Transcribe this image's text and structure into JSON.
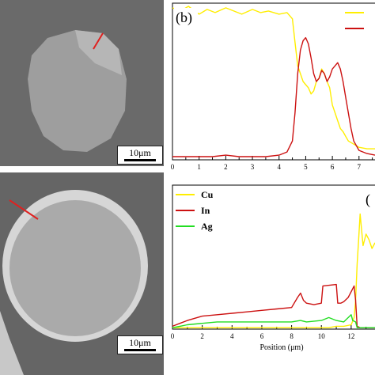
{
  "panels": {
    "a": {
      "scale_label": "10μm"
    },
    "c": {
      "scale_label": "10μm"
    }
  },
  "chart_data": [
    {
      "type": "line",
      "panel_label": "(b)",
      "xlabel": "",
      "ylabel": "",
      "xlim": [
        0,
        7.6
      ],
      "ylim": [
        0,
        1
      ],
      "xticks": [
        0,
        1,
        2,
        3,
        4,
        5,
        6,
        7
      ],
      "series": [
        {
          "name": "",
          "color": "#ffee00",
          "x": [
            0.0,
            0.3,
            0.6,
            1.0,
            1.3,
            1.6,
            2.0,
            2.3,
            2.6,
            3.0,
            3.3,
            3.6,
            4.0,
            4.3,
            4.5,
            4.6,
            4.7,
            4.8,
            4.9,
            5.0,
            5.1,
            5.2,
            5.3,
            5.4,
            5.5,
            5.6,
            5.7,
            5.8,
            5.9,
            6.0,
            6.1,
            6.2,
            6.3,
            6.4,
            6.5,
            6.6,
            6.8,
            7.0,
            7.3,
            7.6
          ],
          "y": [
            0.97,
            0.95,
            0.98,
            0.93,
            0.96,
            0.94,
            0.97,
            0.95,
            0.93,
            0.96,
            0.94,
            0.95,
            0.93,
            0.94,
            0.9,
            0.75,
            0.6,
            0.55,
            0.5,
            0.48,
            0.46,
            0.42,
            0.44,
            0.5,
            0.52,
            0.58,
            0.55,
            0.5,
            0.46,
            0.35,
            0.3,
            0.25,
            0.2,
            0.18,
            0.15,
            0.12,
            0.1,
            0.08,
            0.07,
            0.07
          ]
        },
        {
          "name": "",
          "color": "#cc1111",
          "x": [
            0.0,
            0.5,
            1.0,
            1.5,
            2.0,
            2.5,
            3.0,
            3.5,
            4.0,
            4.3,
            4.5,
            4.6,
            4.7,
            4.8,
            4.9,
            5.0,
            5.1,
            5.2,
            5.3,
            5.4,
            5.5,
            5.6,
            5.7,
            5.8,
            5.9,
            6.0,
            6.1,
            6.2,
            6.3,
            6.4,
            6.5,
            6.6,
            6.7,
            6.8,
            7.0,
            7.3,
            7.6
          ],
          "y": [
            0.02,
            0.02,
            0.02,
            0.02,
            0.03,
            0.02,
            0.02,
            0.02,
            0.03,
            0.05,
            0.12,
            0.3,
            0.55,
            0.7,
            0.76,
            0.78,
            0.74,
            0.65,
            0.55,
            0.5,
            0.52,
            0.57,
            0.55,
            0.5,
            0.53,
            0.58,
            0.6,
            0.62,
            0.58,
            0.5,
            0.4,
            0.3,
            0.2,
            0.12,
            0.06,
            0.04,
            0.03
          ]
        }
      ]
    },
    {
      "type": "line",
      "panel_label": "(",
      "xlabel": "Position (μm)",
      "ylabel": "",
      "xlim": [
        0,
        13.6
      ],
      "ylim": [
        0,
        1
      ],
      "xticks": [
        0,
        2,
        4,
        6,
        8,
        10,
        12
      ],
      "legend": [
        "Cu",
        "In",
        "Ag"
      ],
      "series": [
        {
          "name": "Cu",
          "color": "#ffee00",
          "x": [
            0,
            1,
            2,
            3,
            4,
            5,
            6,
            7,
            8,
            8.5,
            9,
            10,
            10.5,
            11,
            11.5,
            12,
            12.2,
            12.3,
            12.4,
            12.5,
            12.6,
            12.8,
            13.0,
            13.2,
            13.4,
            13.6
          ],
          "y": [
            0.01,
            0.01,
            0.01,
            0.01,
            0.01,
            0.01,
            0.01,
            0.01,
            0.01,
            0.01,
            0.01,
            0.01,
            0.01,
            0.02,
            0.02,
            0.03,
            0.08,
            0.2,
            0.45,
            0.62,
            0.8,
            0.58,
            0.66,
            0.62,
            0.56,
            0.6
          ]
        },
        {
          "name": "In",
          "color": "#cc1111",
          "x": [
            0,
            0.5,
            1,
            2,
            3,
            4,
            5,
            6,
            7,
            8,
            8.4,
            8.6,
            8.8,
            9,
            9.5,
            10,
            10.1,
            11,
            11.1,
            11.3,
            11.5,
            11.8,
            12,
            12.2,
            12.3,
            12.4,
            12.6,
            13,
            13.6
          ],
          "y": [
            0.02,
            0.04,
            0.06,
            0.09,
            0.1,
            0.11,
            0.12,
            0.13,
            0.14,
            0.15,
            0.22,
            0.25,
            0.2,
            0.18,
            0.17,
            0.18,
            0.3,
            0.31,
            0.18,
            0.18,
            0.19,
            0.22,
            0.26,
            0.3,
            0.2,
            0.02,
            0.01,
            0.01,
            0.01
          ]
        },
        {
          "name": "Ag",
          "color": "#22dd22",
          "x": [
            0,
            0.5,
            1,
            2,
            3,
            4,
            5,
            6,
            7,
            8,
            8.6,
            9,
            10,
            10.5,
            11,
            11.5,
            12,
            12.1,
            12.3,
            12.4,
            12.6,
            13,
            13.6
          ],
          "y": [
            0.01,
            0.02,
            0.03,
            0.04,
            0.05,
            0.05,
            0.05,
            0.05,
            0.05,
            0.05,
            0.06,
            0.05,
            0.06,
            0.08,
            0.06,
            0.05,
            0.1,
            0.06,
            0.05,
            0.01,
            0.01,
            0.01,
            0.01
          ]
        }
      ]
    }
  ]
}
